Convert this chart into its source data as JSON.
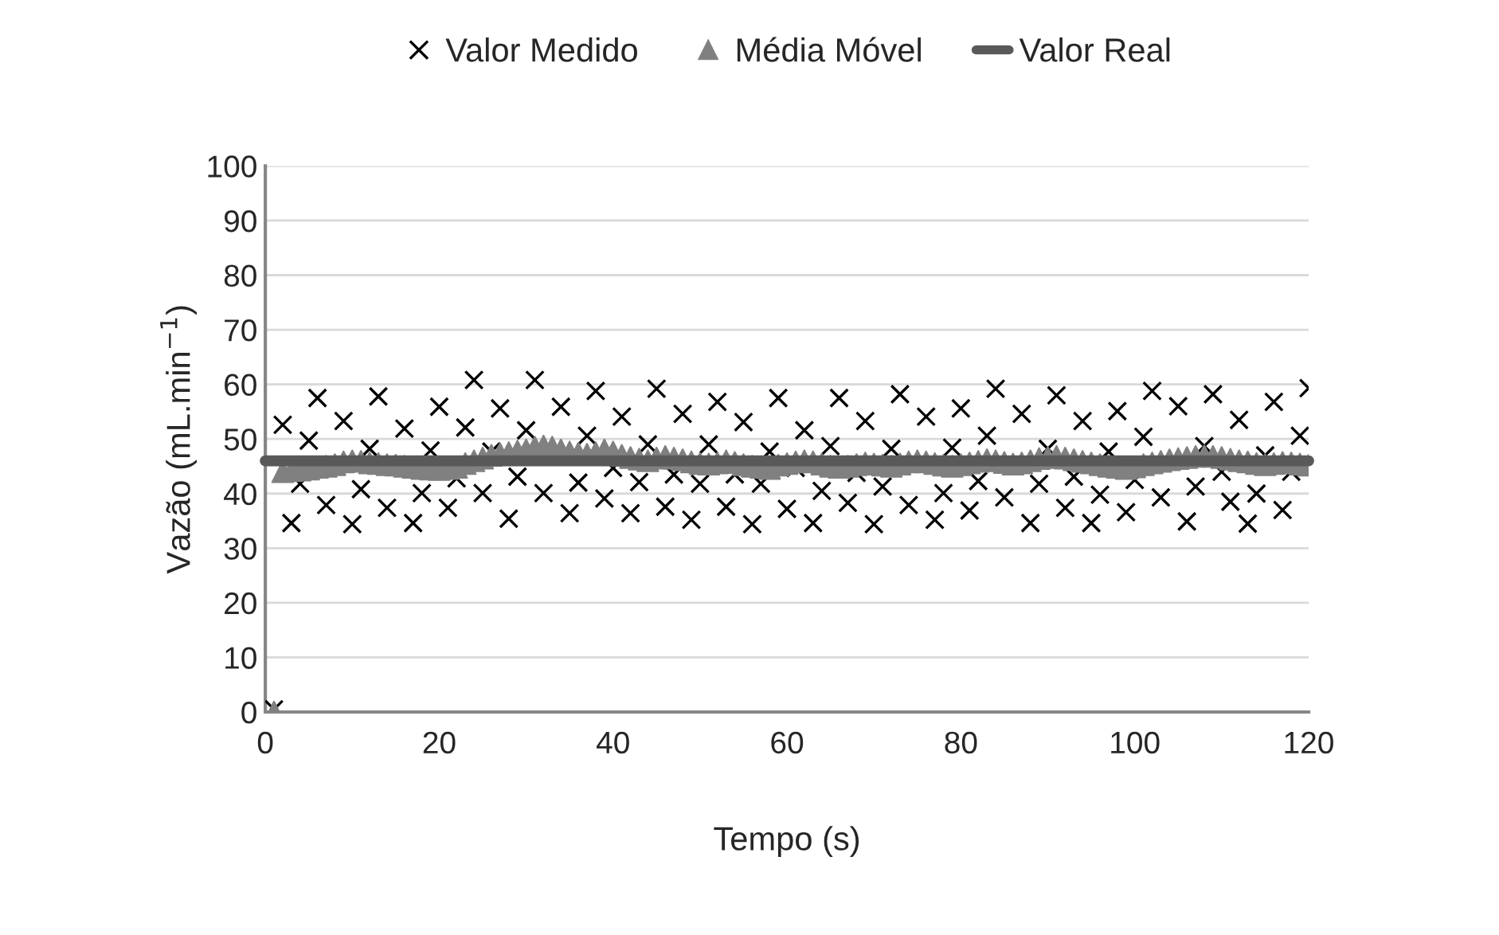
{
  "chart_data": {
    "type": "scatter",
    "xlabel": "Tempo (s)",
    "ylabel": "Vazão (mL.min$^{−1}$)",
    "xlim": [
      0,
      120
    ],
    "xticks": [
      0,
      20,
      40,
      60,
      80,
      100,
      120
    ],
    "ylim": [
      0,
      100
    ],
    "yticks": [
      0,
      10,
      20,
      30,
      40,
      50,
      60,
      70,
      80,
      90,
      100
    ],
    "grid": "y",
    "legend": "top",
    "x": [
      1,
      2,
      3,
      4,
      5,
      6,
      7,
      8,
      9,
      10,
      11,
      12,
      13,
      14,
      15,
      16,
      17,
      18,
      19,
      20,
      21,
      22,
      23,
      24,
      25,
      26,
      27,
      28,
      29,
      30,
      31,
      32,
      33,
      34,
      35,
      36,
      37,
      38,
      39,
      40,
      41,
      42,
      43,
      44,
      45,
      46,
      47,
      48,
      49,
      50,
      51,
      52,
      53,
      54,
      55,
      56,
      57,
      58,
      59,
      60,
      61,
      62,
      63,
      64,
      65,
      66,
      67,
      68,
      69,
      70,
      71,
      72,
      73,
      74,
      75,
      76,
      77,
      78,
      79,
      80,
      81,
      82,
      83,
      84,
      85,
      86,
      87,
      88,
      89,
      90,
      91,
      92,
      93,
      94,
      95,
      96,
      97,
      98,
      99,
      100,
      101,
      102,
      103,
      104,
      105,
      106,
      107,
      108,
      109,
      110,
      111,
      112,
      113,
      114,
      115,
      116,
      117,
      118,
      119,
      120
    ],
    "series": [
      {
        "name": "Valor Medido",
        "marker": "cross",
        "color": "#000000",
        "values": [
          0.5,
          52.6,
          34.6,
          41.8,
          49.7,
          57.5,
          37.9,
          null,
          53.3,
          34.4,
          40.8,
          48.2,
          57.8,
          37.4,
          null,
          51.9,
          34.6,
          40.1,
          47.9,
          55.9,
          37.4,
          42.8,
          52.1,
          60.8,
          40.1,
          47.7,
          55.6,
          35.4,
          43.1,
          51.6,
          60.8,
          40.1,
          null,
          55.9,
          36.4,
          42.0,
          50.6,
          58.8,
          39.1,
          44.7,
          54.1,
          36.4,
          42.1,
          49.0,
          59.2,
          37.6,
          43.5,
          54.6,
          35.2,
          41.8,
          49.0,
          56.8,
          37.6,
          43.5,
          53.1,
          34.4,
          41.8,
          47.7,
          57.5,
          37.2,
          44.7,
          51.6,
          34.6,
          40.5,
          48.7,
          57.5,
          38.3,
          43.8,
          53.3,
          34.4,
          41.3,
          48.2,
          58.2,
          37.9,
          null,
          54.1,
          35.2,
          40.1,
          48.4,
          55.6,
          36.9,
          42.3,
          50.6,
          59.2,
          39.3,
          null,
          54.6,
          34.6,
          41.8,
          48.2,
          58.0,
          37.4,
          43.1,
          53.3,
          34.6,
          39.8,
          47.7,
          55.1,
          36.6,
          42.5,
          50.4,
          58.8,
          39.3,
          null,
          56.0,
          34.9,
          41.3,
          48.7,
          58.2,
          44.0,
          38.5,
          53.5,
          34.5,
          40.0,
          47.0,
          56.8,
          37.0,
          44.0,
          50.6,
          59.3
        ]
      },
      {
        "name": "Média Móvel",
        "marker": "triangle",
        "color": "#808080",
        "values": [
          0,
          44.0,
          44.2,
          44.3,
          44.5,
          44.8,
          45.0,
          45.3,
          45.8,
          46.0,
          45.9,
          45.6,
          45.5,
          45.3,
          45.2,
          45.0,
          44.8,
          44.6,
          44.5,
          44.4,
          44.6,
          44.8,
          45.5,
          46.0,
          46.5,
          47.0,
          47.3,
          47.5,
          47.8,
          48.0,
          48.5,
          48.7,
          48.5,
          48.0,
          47.6,
          47.4,
          47.2,
          47.5,
          48.0,
          47.6,
          47.0,
          46.6,
          46.3,
          46.0,
          46.5,
          46.8,
          46.5,
          46.2,
          45.8,
          45.5,
          45.4,
          45.6,
          46.0,
          45.7,
          45.3,
          45.0,
          44.8,
          44.6,
          45.2,
          45.5,
          45.8,
          46.0,
          45.8,
          45.4,
          45.0,
          44.8,
          45.0,
          45.3,
          45.6,
          45.4,
          45.2,
          45.0,
          45.4,
          45.8,
          46.0,
          45.8,
          45.5,
          45.2,
          45.0,
          45.3,
          45.6,
          45.9,
          46.2,
          46.0,
          45.7,
          45.4,
          45.6,
          46.0,
          46.4,
          46.6,
          46.8,
          46.5,
          46.2,
          45.9,
          45.6,
          45.3,
          45.0,
          44.8,
          44.6,
          44.9,
          45.3,
          45.6,
          45.9,
          46.2,
          46.4,
          46.6,
          46.8,
          46.9,
          46.8,
          46.6,
          46.3,
          46.0,
          45.8,
          45.5,
          45.3,
          45.5,
          45.7,
          45.6,
          45.4,
          45.2
        ]
      },
      {
        "name": "Valor Real",
        "type": "line",
        "marker": "none",
        "line_style": "solid",
        "color": "#595959",
        "x": [
          0,
          120
        ],
        "values": [
          46,
          46
        ]
      }
    ]
  }
}
